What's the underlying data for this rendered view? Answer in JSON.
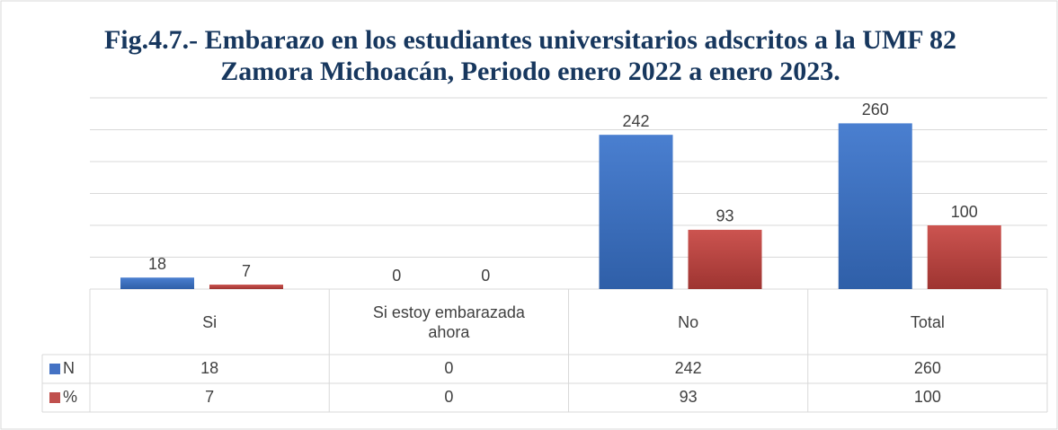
{
  "chart_data": {
    "type": "bar",
    "title": "Fig.4.7.- Embarazo en los estudiantes universitarios adscritos a la UMF 82 Zamora Michoacán, Periodo enero 2022 a enero 2023.",
    "categories": [
      "Si",
      "Si estoy embarazada ahora",
      "No",
      "Total"
    ],
    "series": [
      {
        "name": "N",
        "color": "#4472c4",
        "values": [
          18,
          0,
          242,
          260
        ]
      },
      {
        "name": "%",
        "color": "#c0504d",
        "values": [
          7,
          0,
          93,
          100
        ]
      }
    ],
    "ylim": [
      0,
      300
    ],
    "yticks": [
      0,
      50,
      100,
      150,
      200,
      250,
      300
    ],
    "grid": true
  }
}
